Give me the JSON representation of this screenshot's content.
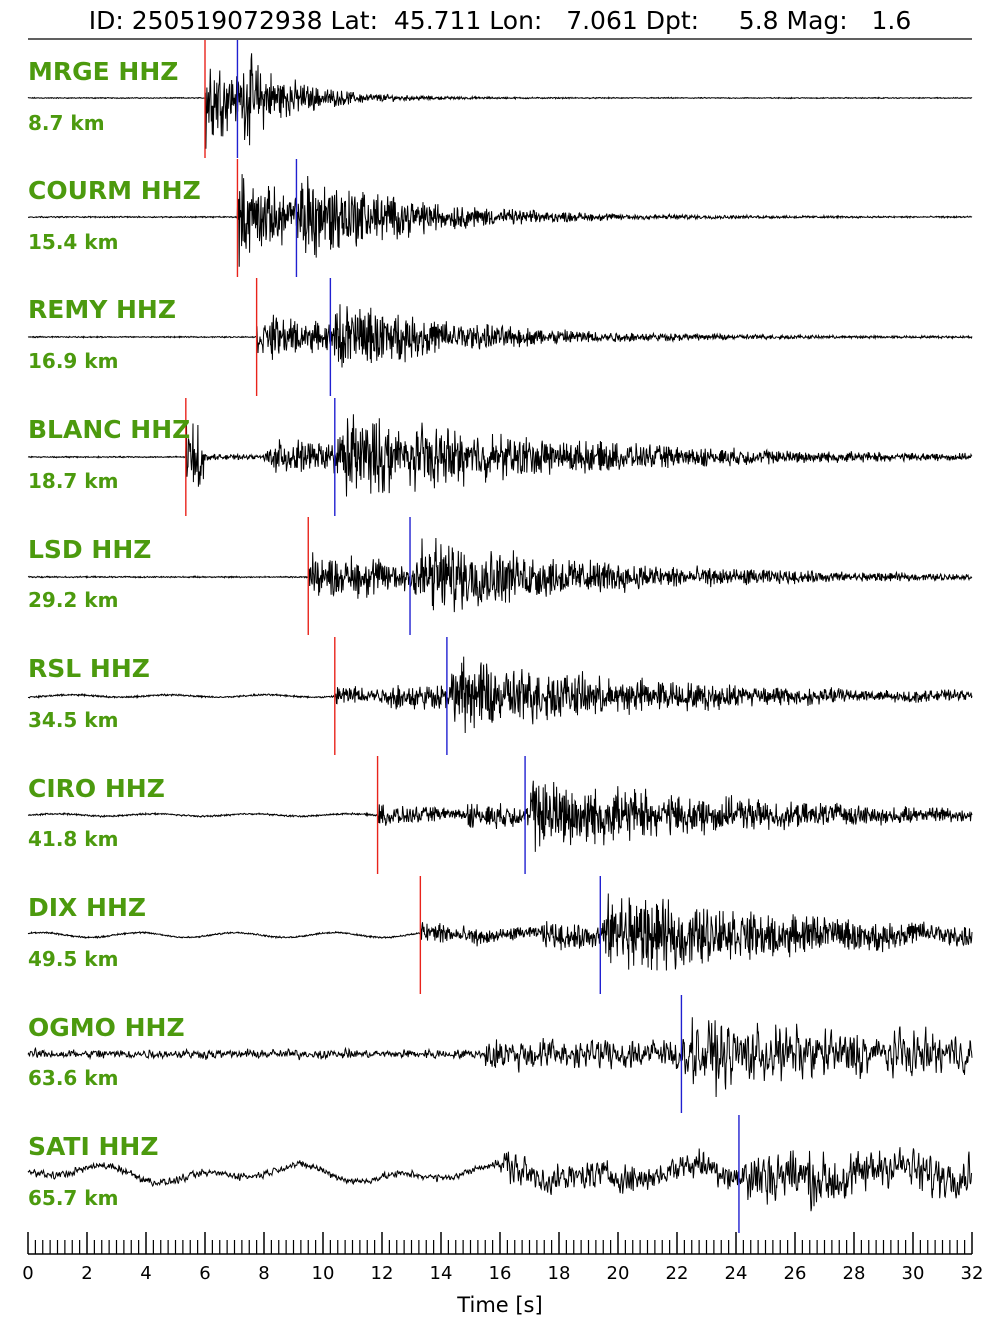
{
  "header": {
    "title": "ID: 250519072938 Lat:  45.711 Lon:   7.061 Dpt:     5.8 Mag:   1.6"
  },
  "colors": {
    "label": "#4c9a0e",
    "p_pick": "#e8231b",
    "s_pick": "#2020d0",
    "trace": "#000000"
  },
  "chart_data": {
    "type": "line",
    "title": "ID: 250519072938 Lat:  45.711 Lon:   7.061 Dpt:     5.8 Mag:   1.6",
    "xlabel": "Time [s]",
    "xlim": [
      0,
      32
    ],
    "x_tick_labels": [
      "0",
      "2",
      "4",
      "6",
      "8",
      "10",
      "12",
      "14",
      "16",
      "18",
      "20",
      "22",
      "24",
      "26",
      "28",
      "30",
      "32"
    ],
    "x_major_step": 2,
    "x_minor_step": 0.25,
    "grid": false,
    "series": [
      {
        "name": "MRGE HHZ",
        "distance": "8.7 km",
        "p_pick": 6.0,
        "s_pick": 7.1
      },
      {
        "name": "COURM HHZ",
        "distance": "15.4 km",
        "p_pick": 7.1,
        "s_pick": 9.1
      },
      {
        "name": "REMY HHZ",
        "distance": "16.9 km",
        "p_pick": 7.75,
        "s_pick": 10.25
      },
      {
        "name": "BLANC HHZ",
        "distance": "18.7 km",
        "p_pick": 5.35,
        "s_pick": 10.4
      },
      {
        "name": "LSD HHZ",
        "distance": "29.2 km",
        "p_pick": 9.5,
        "s_pick": 12.95
      },
      {
        "name": "RSL HHZ",
        "distance": "34.5 km",
        "p_pick": 10.4,
        "s_pick": 14.2
      },
      {
        "name": "CIRO HHZ",
        "distance": "41.8 km",
        "p_pick": 11.85,
        "s_pick": 16.85
      },
      {
        "name": "DIX HHZ",
        "distance": "49.5 km",
        "p_pick": 13.3,
        "s_pick": 19.4
      },
      {
        "name": "OGMO HHZ",
        "distance": "63.6 km",
        "p_pick": null,
        "s_pick": 22.15
      },
      {
        "name": "SATI HHZ",
        "distance": "65.7 km",
        "p_pick": null,
        "s_pick": 24.1
      }
    ]
  }
}
